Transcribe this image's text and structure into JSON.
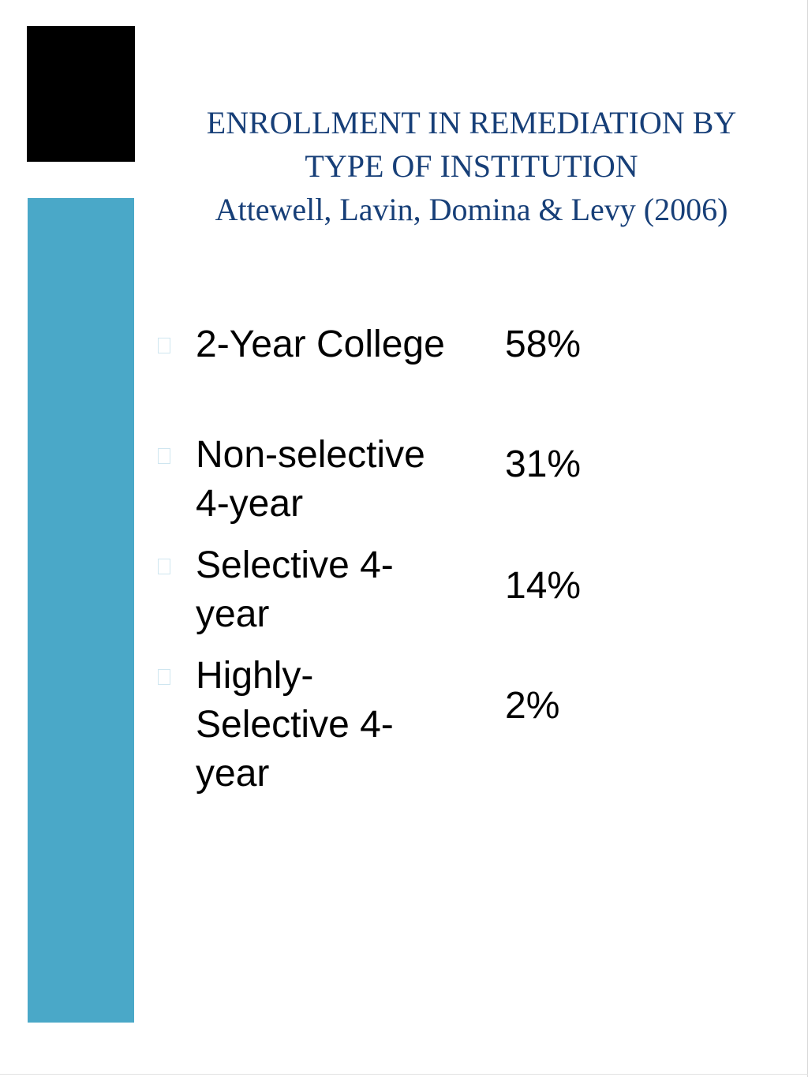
{
  "colors": {
    "accent_bar": "#4aa8c8",
    "block": "#000000",
    "title": "#173f78",
    "bullet_border": "#cfe6f0"
  },
  "slide": {
    "title_line1": "ENROLLMENT IN REMEDIATION BY",
    "title_line2": "TYPE OF INSTITUTION",
    "subtitle": "Attewell, Lavin, Domina & Levy (2006)"
  },
  "items": [
    {
      "label": "2-Year College",
      "value": "58%",
      "bullet_icon": "square-bullet-icon"
    },
    {
      "label": "Non-selective 4-year",
      "value": "31%",
      "bullet_icon": "square-bullet-icon"
    },
    {
      "label": "Selective 4-year",
      "value": "14%",
      "bullet_icon": "square-bullet-icon"
    },
    {
      "label": "Highly-Selective 4-year",
      "value": "2%",
      "bullet_icon": "square-bullet-icon"
    }
  ]
}
